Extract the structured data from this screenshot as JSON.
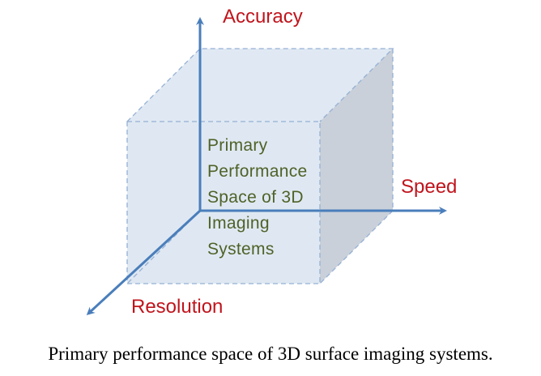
{
  "diagram": {
    "axes": {
      "accuracy": "Accuracy",
      "speed": "Speed",
      "resolution": "Resolution"
    },
    "center_text": [
      "Primary",
      "Performance",
      "Space of 3D",
      "Imaging",
      "Systems"
    ],
    "colors": {
      "axis_label": "#c0141c",
      "axis_line": "#4a7ebb",
      "center_text": "#4f6228",
      "cube_fill": "#dbe5f1",
      "cube_side": "#c9d0da",
      "cube_edge": "#95b0d4"
    }
  },
  "caption": "Primary performance space of 3D surface imaging systems."
}
